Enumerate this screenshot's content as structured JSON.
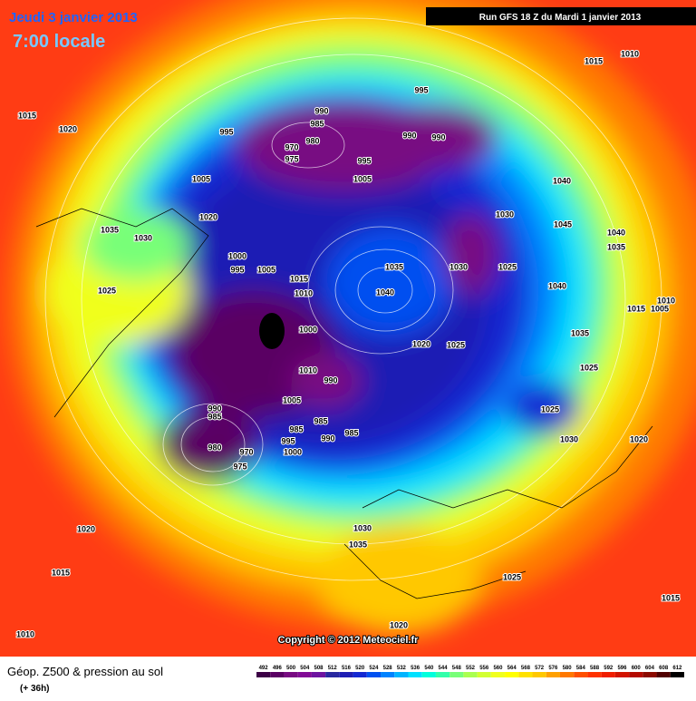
{
  "header": {
    "date": "Jeudi 3 janvier 2013",
    "time": "7:00 locale",
    "run": "Run GFS 18 Z du Mardi 1 janvier 2013"
  },
  "pressure_labels": [
    1015,
    1010,
    1015,
    1020,
    995,
    990,
    985,
    995,
    980,
    970,
    975,
    990,
    990,
    995,
    1005,
    1005,
    1040,
    1020,
    1030,
    1035,
    1030,
    1045,
    1040,
    1035,
    1000,
    995,
    1005,
    1035,
    1030,
    1025,
    1015,
    1040,
    1025,
    1010,
    1040,
    1010,
    1015,
    1005,
    1000,
    1035,
    1020,
    1025,
    1025,
    1010,
    990,
    1005,
    1025,
    990,
    985,
    985,
    985,
    985,
    990,
    995,
    980,
    1000,
    970,
    1030,
    1020,
    975,
    1020,
    1030,
    1035,
    1015,
    1025,
    1015,
    1010,
    1020
  ],
  "copyright": "Copyright © 2012 Meteociel.fr",
  "footer": {
    "caption": "Géop. Z500 & pression au sol",
    "lead": "(+ 36h)"
  },
  "scale": {
    "values": [
      492,
      496,
      500,
      504,
      508,
      512,
      516,
      520,
      524,
      528,
      532,
      536,
      540,
      544,
      548,
      552,
      556,
      560,
      564,
      568,
      572,
      576,
      580,
      584,
      588,
      592,
      596,
      600,
      604,
      608,
      612
    ],
    "colors": [
      "#3c0046",
      "#5a0064",
      "#780a82",
      "#820a96",
      "#6e14a0",
      "#2828a0",
      "#1e1eb4",
      "#1428d2",
      "#0050f0",
      "#0082ff",
      "#00b4ff",
      "#00e1ff",
      "#00ffdc",
      "#32ffaa",
      "#78ff78",
      "#aaff50",
      "#d2ff32",
      "#f0ff1e",
      "#ffff00",
      "#ffe100",
      "#ffc800",
      "#ffa000",
      "#ff7800",
      "#ff5000",
      "#ff3200",
      "#f01e00",
      "#d21400",
      "#b40a00",
      "#8c0a00",
      "#500000",
      "#000000"
    ]
  }
}
